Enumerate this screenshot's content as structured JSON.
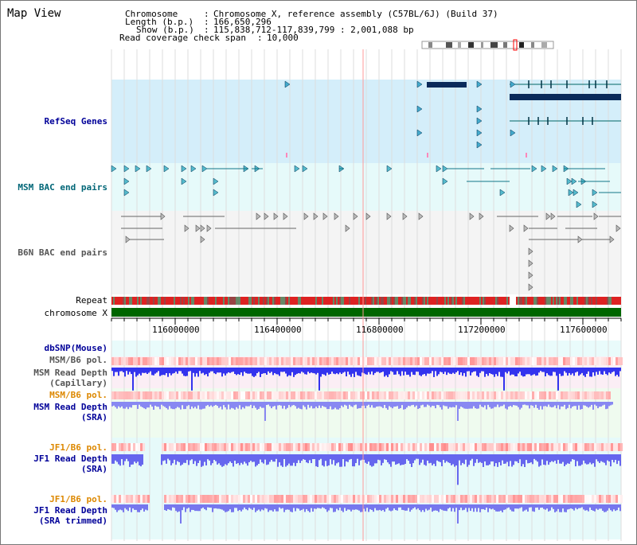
{
  "title": "Map View",
  "header": {
    "chromosome_label": "Chromosome",
    "chromosome_value": "Chromosome X, reference assembly (C57BL/6J) (Build 37)",
    "length_label": "Length (b.p.)",
    "length_value": "166,650,296",
    "show_label": "Show (b.p.)",
    "show_value": "115,838,712-117,839,799 : 2,001,088 bp",
    "coverage_label": "Read coverage check span",
    "coverage_value": "10,000"
  },
  "tracks": {
    "refseq": "RefSeq Genes",
    "msm_bac": "MSM BAC end pairs",
    "b6n_bac": "B6N BAC end pairs",
    "repeat": "Repeat",
    "chromosome": "chromosome X",
    "dbsnp": "dbSNP(Mouse)",
    "msm_b6_pol_1": "MSM/B6 pol.",
    "msm_depth_cap_1": "MSM Read Depth",
    "msm_depth_cap_2": "(Capillary)",
    "msm_b6_pol_2": "MSM/B6 pol.",
    "msm_depth_sra_1": "MSM Read Depth",
    "msm_depth_sra_2": "(SRA)",
    "jf1_pol_1": "JF1/B6 pol.",
    "jf1_depth_1": "JF1 Read Depth",
    "jf1_depth_2": "(SRA)",
    "jf1_pol_2": "JF1/B6 pol.",
    "jf1_trim_1": "JF1 Read Depth",
    "jf1_trim_2": "(SRA trimmed)"
  },
  "axis": {
    "ticks": [
      "116000000",
      "116400000",
      "116800000",
      "117200000",
      "117600000"
    ]
  },
  "colors": {
    "refseq_label": "#000099",
    "msm_bac_label": "#006677",
    "b6n_label": "#555555",
    "pol_orange": "#dd8800",
    "depth_blue": "#000099",
    "refseq_bg": "#d4eefa",
    "msm_bac_bg": "#e6fafa",
    "b6n_bg": "#f4f4f4",
    "chrom_green": "#006600"
  }
}
